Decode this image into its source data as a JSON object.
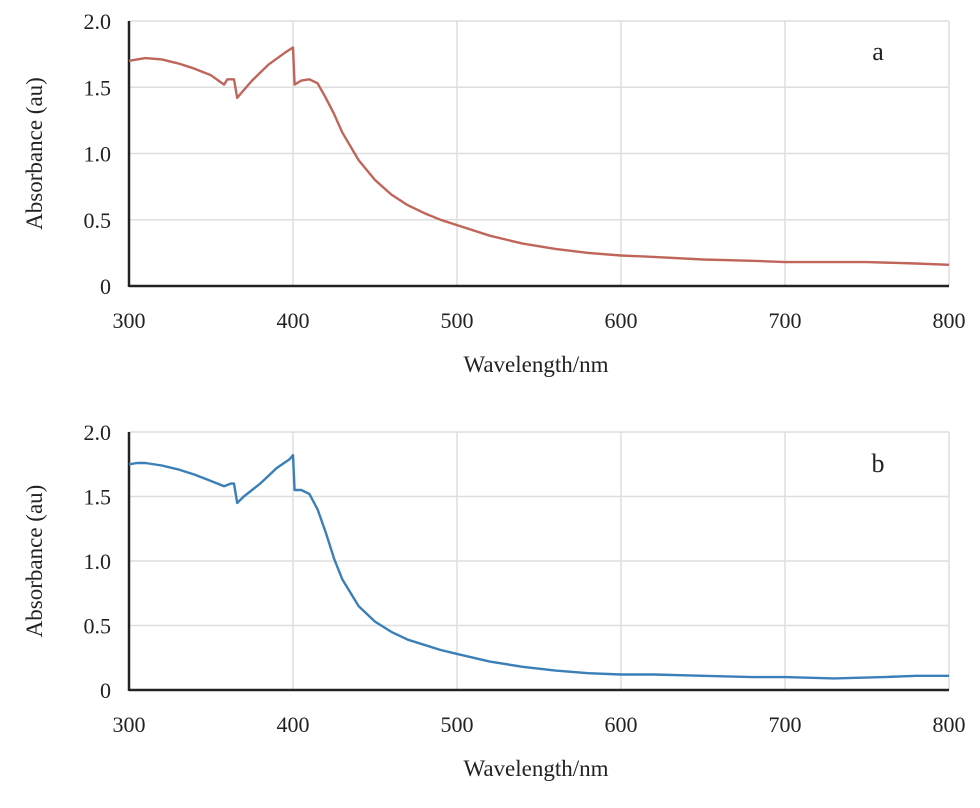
{
  "chart_data": [
    {
      "type": "line",
      "panel_label": "a",
      "xlabel": "Wavelength/nm",
      "ylabel": "Absorbance (au)",
      "xlim": [
        300,
        800
      ],
      "ylim": [
        0,
        2.0
      ],
      "xticks": [
        "300",
        "400",
        "500",
        "600",
        "700",
        "800"
      ],
      "yticks": [
        "0",
        "0.5",
        "1.0",
        "1.5",
        "2.0"
      ],
      "grid": true,
      "color": "#c0655a",
      "series": [
        {
          "name": "a",
          "x": [
            300,
            305,
            310,
            320,
            330,
            340,
            350,
            358,
            360,
            364,
            366,
            368,
            375,
            385,
            395,
            400,
            401,
            405,
            410,
            415,
            420,
            425,
            430,
            440,
            450,
            460,
            470,
            480,
            490,
            500,
            520,
            540,
            560,
            580,
            600,
            620,
            650,
            680,
            700,
            750,
            780,
            800
          ],
          "y": [
            1.7,
            1.71,
            1.72,
            1.71,
            1.68,
            1.64,
            1.59,
            1.52,
            1.56,
            1.56,
            1.42,
            1.45,
            1.55,
            1.67,
            1.76,
            1.8,
            1.52,
            1.55,
            1.56,
            1.53,
            1.42,
            1.3,
            1.16,
            0.95,
            0.8,
            0.69,
            0.61,
            0.55,
            0.5,
            0.46,
            0.38,
            0.32,
            0.28,
            0.25,
            0.23,
            0.22,
            0.2,
            0.19,
            0.18,
            0.18,
            0.17,
            0.16
          ]
        }
      ]
    },
    {
      "type": "line",
      "panel_label": "b",
      "xlabel": "Wavelength/nm",
      "ylabel": "Absorbance (au)",
      "xlim": [
        300,
        800
      ],
      "ylim": [
        0,
        2.0
      ],
      "xticks": [
        "300",
        "400",
        "500",
        "600",
        "700",
        "800"
      ],
      "yticks": [
        "0",
        "0.5",
        "1.0",
        "1.5",
        "2.0"
      ],
      "grid": true,
      "color": "#3a7fb8",
      "series": [
        {
          "name": "b",
          "x": [
            300,
            305,
            310,
            320,
            330,
            340,
            350,
            358,
            362,
            364,
            366,
            370,
            380,
            390,
            398,
            400,
            401,
            405,
            410,
            415,
            420,
            425,
            430,
            440,
            450,
            460,
            470,
            480,
            490,
            500,
            520,
            540,
            560,
            580,
            600,
            620,
            650,
            680,
            700,
            730,
            760,
            780,
            800
          ],
          "y": [
            1.75,
            1.76,
            1.76,
            1.74,
            1.71,
            1.67,
            1.62,
            1.58,
            1.6,
            1.6,
            1.45,
            1.5,
            1.6,
            1.72,
            1.79,
            1.82,
            1.55,
            1.55,
            1.52,
            1.4,
            1.22,
            1.02,
            0.86,
            0.65,
            0.53,
            0.45,
            0.39,
            0.35,
            0.31,
            0.28,
            0.22,
            0.18,
            0.15,
            0.13,
            0.12,
            0.12,
            0.11,
            0.1,
            0.1,
            0.09,
            0.1,
            0.11,
            0.11
          ]
        }
      ]
    }
  ]
}
